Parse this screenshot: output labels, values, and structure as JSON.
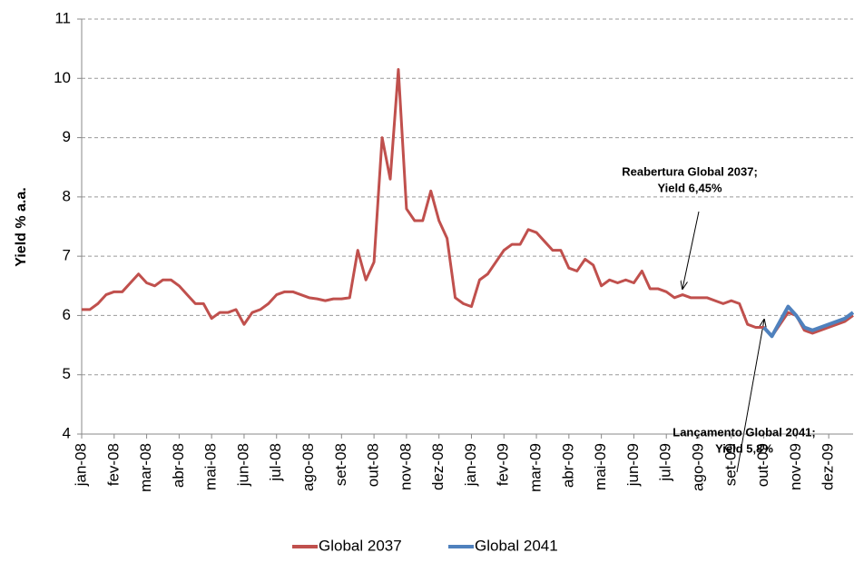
{
  "chart_data": {
    "type": "line",
    "y_label": "Yield % a.a.",
    "categories": [
      "jan-08",
      null,
      null,
      null,
      "fev-08",
      null,
      null,
      null,
      "mar-08",
      null,
      null,
      null,
      "abr-08",
      null,
      null,
      null,
      "mai-08",
      null,
      null,
      null,
      "jun-08",
      null,
      null,
      null,
      "jul-08",
      null,
      null,
      null,
      "ago-08",
      null,
      null,
      null,
      "set-08",
      null,
      null,
      null,
      "out-08",
      null,
      null,
      null,
      "nov-08",
      null,
      null,
      null,
      "dez-08",
      null,
      null,
      null,
      "jan-09",
      null,
      null,
      null,
      "fev-09",
      null,
      null,
      null,
      "mar-09",
      null,
      null,
      null,
      "abr-09",
      null,
      null,
      null,
      "mai-09",
      null,
      null,
      null,
      "jun-09",
      null,
      null,
      null,
      "jul-09",
      null,
      null,
      null,
      "ago-09",
      null,
      null,
      null,
      "set-09",
      null,
      null,
      null,
      "out-09",
      null,
      null,
      null,
      "nov-09",
      null,
      null,
      null,
      "dez-09",
      null,
      null,
      null
    ],
    "series": [
      {
        "name": "Global 2037",
        "color": "#c0504d",
        "values": [
          6.1,
          6.1,
          6.2,
          6.35,
          6.4,
          6.4,
          6.55,
          6.7,
          6.55,
          6.5,
          6.6,
          6.6,
          6.5,
          6.35,
          6.2,
          6.2,
          5.95,
          6.05,
          6.05,
          6.1,
          5.85,
          6.05,
          6.1,
          6.2,
          6.35,
          6.4,
          6.4,
          6.35,
          6.3,
          6.28,
          6.25,
          6.28,
          6.28,
          6.3,
          7.1,
          6.6,
          6.9,
          9.0,
          8.3,
          10.15,
          7.8,
          7.6,
          7.6,
          8.1,
          7.6,
          7.3,
          6.3,
          6.2,
          6.15,
          6.6,
          6.7,
          6.9,
          7.1,
          7.2,
          7.2,
          7.45,
          7.4,
          7.25,
          7.1,
          7.1,
          6.8,
          6.75,
          6.95,
          6.85,
          6.5,
          6.6,
          6.55,
          6.6,
          6.55,
          6.75,
          6.45,
          6.45,
          6.4,
          6.3,
          6.35,
          6.3,
          6.3,
          6.3,
          6.25,
          6.2,
          6.25,
          6.2,
          5.85,
          5.8,
          5.8,
          5.65,
          5.85,
          6.05,
          6.0,
          5.75,
          5.7,
          5.75,
          5.8,
          5.85,
          5.9,
          6.0
        ]
      },
      {
        "name": "Global 2041",
        "color": "#4f81bd",
        "values": [
          null,
          null,
          null,
          null,
          null,
          null,
          null,
          null,
          null,
          null,
          null,
          null,
          null,
          null,
          null,
          null,
          null,
          null,
          null,
          null,
          null,
          null,
          null,
          null,
          null,
          null,
          null,
          null,
          null,
          null,
          null,
          null,
          null,
          null,
          null,
          null,
          null,
          null,
          null,
          null,
          null,
          null,
          null,
          null,
          null,
          null,
          null,
          null,
          null,
          null,
          null,
          null,
          null,
          null,
          null,
          null,
          null,
          null,
          null,
          null,
          null,
          null,
          null,
          null,
          null,
          null,
          null,
          null,
          null,
          null,
          null,
          null,
          null,
          null,
          null,
          null,
          null,
          null,
          null,
          null,
          null,
          null,
          null,
          null,
          5.8,
          5.65,
          5.9,
          6.15,
          6.0,
          5.8,
          5.75,
          5.8,
          5.85,
          5.9,
          5.95,
          6.05
        ]
      }
    ],
    "ylim": [
      4,
      11
    ],
    "yticks": [
      4,
      5,
      6,
      7,
      8,
      9,
      10,
      11
    ],
    "grid": true,
    "legend": "bottom",
    "annotations": [
      {
        "lines": [
          "Reabertura Global 2037;",
          "Yield 6,45%"
        ]
      },
      {
        "lines": [
          "Lançamento Global 2041;",
          "Yield 5,8%"
        ]
      }
    ]
  }
}
